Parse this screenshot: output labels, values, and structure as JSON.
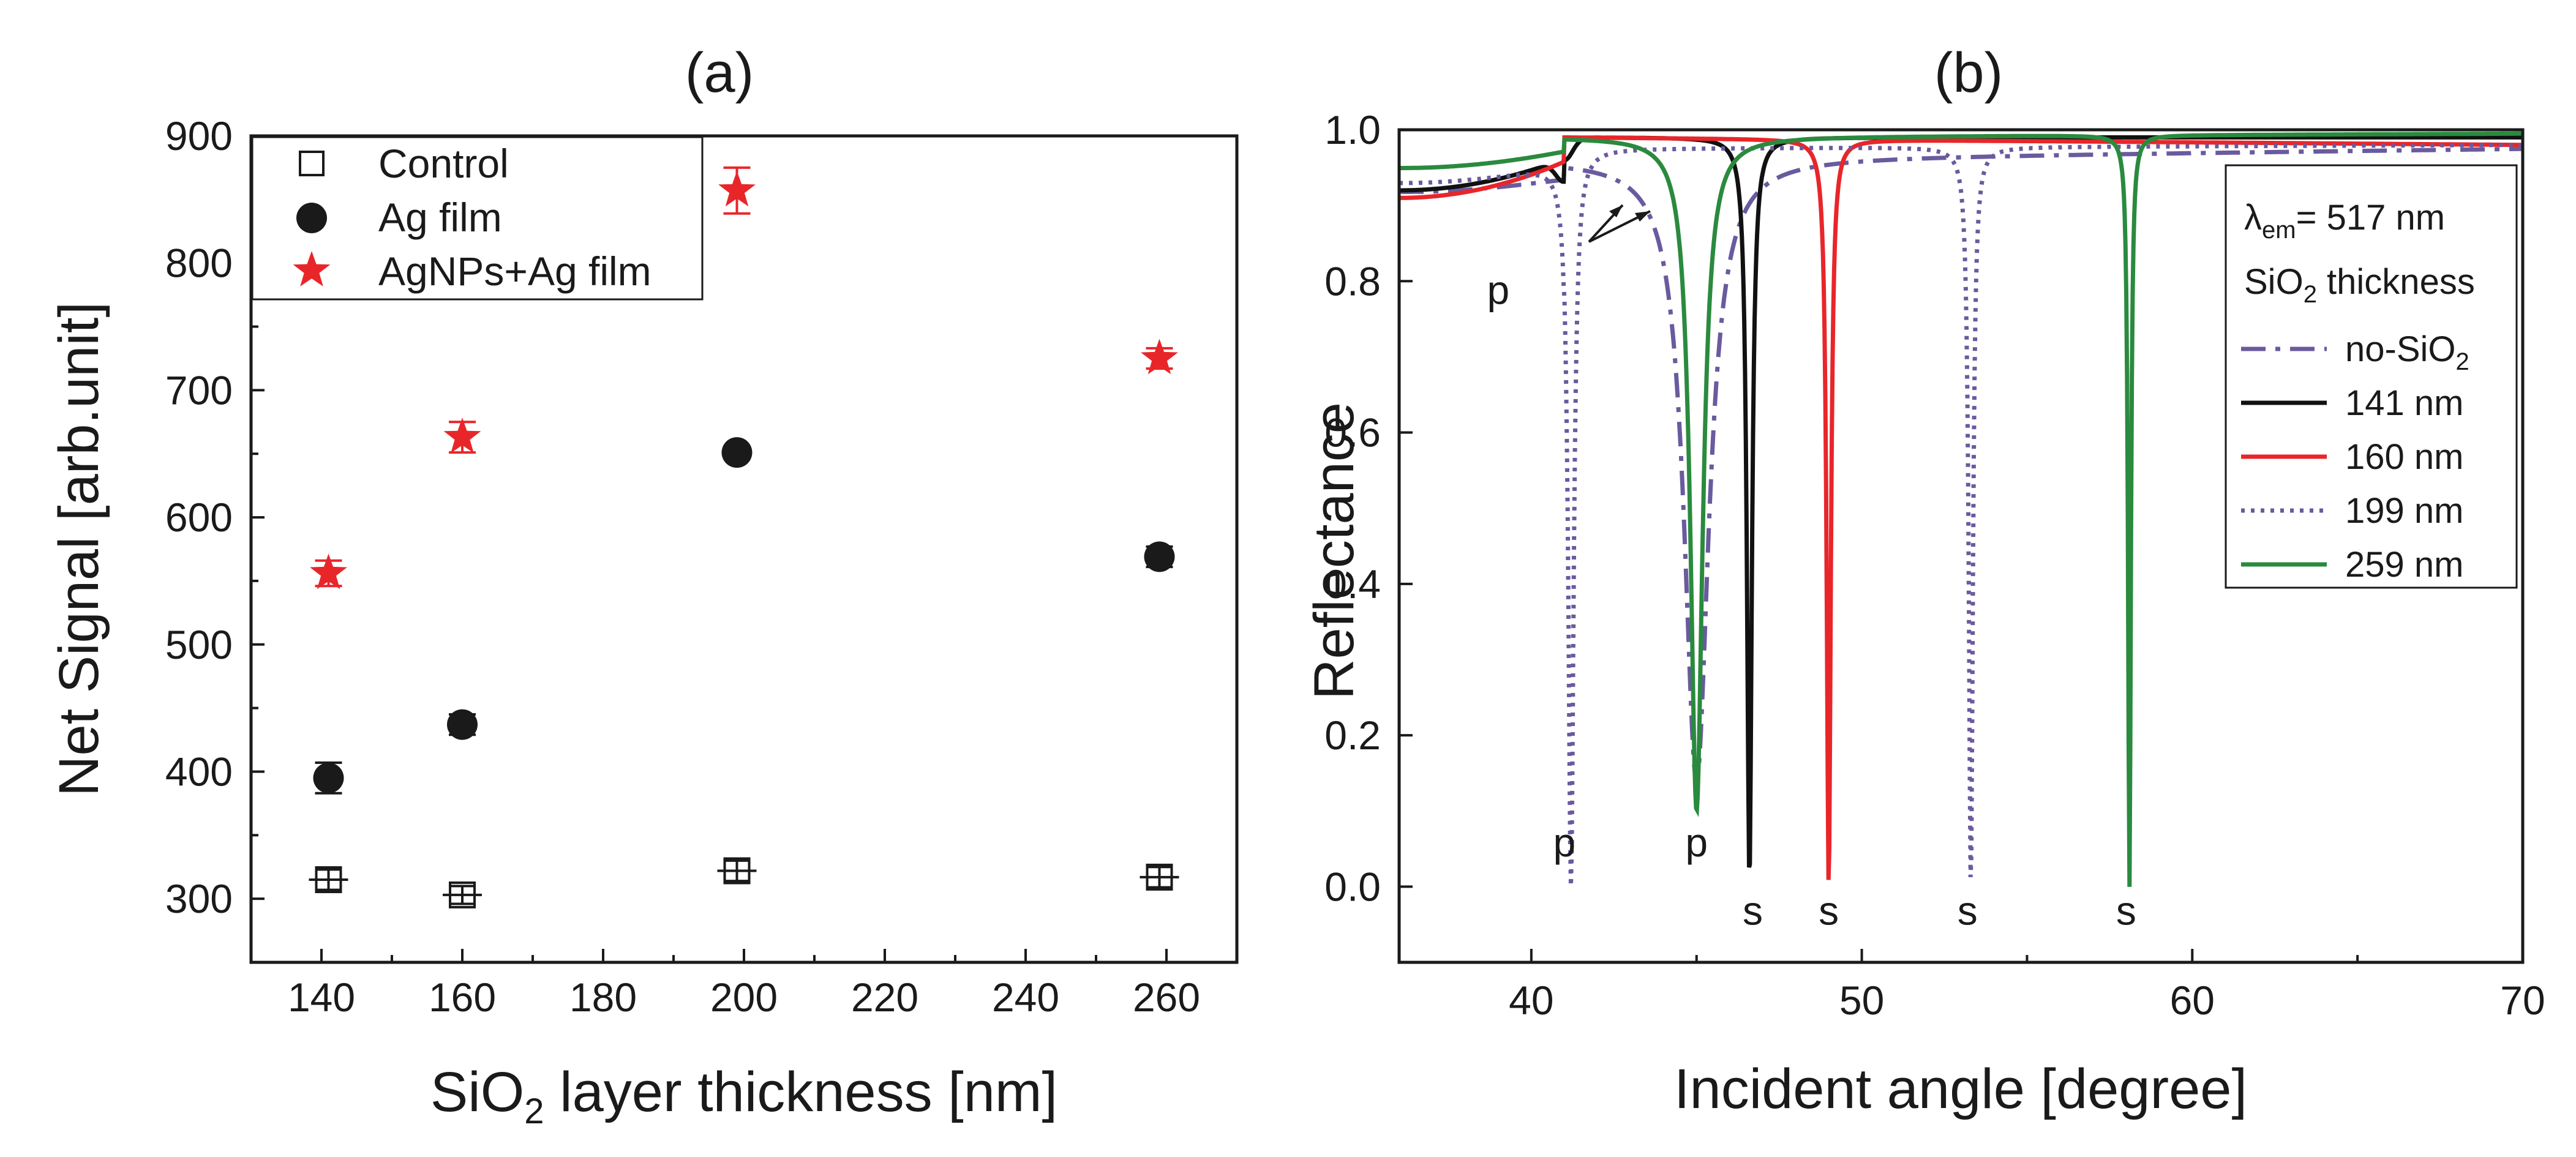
{
  "chart_data": [
    {
      "type": "scatter",
      "panel": "a",
      "title": "(a)",
      "xlabel": "SiO2 layer thickness [nm]",
      "ylabel": "Net Signal [arb.unit]",
      "xlim": [
        130,
        270
      ],
      "ylim": [
        250,
        900
      ],
      "xticks": [
        140,
        160,
        180,
        200,
        220,
        240,
        260
      ],
      "yticks": [
        300,
        400,
        500,
        600,
        700,
        800,
        900
      ],
      "legend_position": "top-left",
      "series": [
        {
          "name": "Control",
          "marker": "crossed-square",
          "color": "#1a1a1a",
          "x": [
            141,
            160,
            199,
            259
          ],
          "y": [
            315,
            303,
            322,
            317
          ],
          "err": [
            8,
            7,
            8,
            8
          ]
        },
        {
          "name": "Ag film",
          "marker": "circle",
          "color": "#1a1a1a",
          "x": [
            141,
            160,
            199,
            259
          ],
          "y": [
            395,
            437,
            651,
            569
          ],
          "err": [
            12,
            8,
            5,
            8
          ]
        },
        {
          "name": "AgNPs+Ag film",
          "marker": "star",
          "color": "#e8262a",
          "x": [
            141,
            160,
            199,
            259
          ],
          "y": [
            556,
            663,
            857,
            725
          ],
          "err": [
            10,
            12,
            18,
            8
          ]
        }
      ]
    },
    {
      "type": "line",
      "panel": "b",
      "title": "(b)",
      "xlabel": "Incident angle [degree]",
      "ylabel": "Reflectance",
      "xlim": [
        36,
        70
      ],
      "ylim": [
        -0.1,
        1.0
      ],
      "xticks": [
        40,
        50,
        60,
        70
      ],
      "yticks": [
        "0.0",
        "0.2",
        "0.4",
        "0.6",
        "0.8",
        "1.0"
      ],
      "legend_position": "right",
      "legend_header": {
        "lambda_symbol": "λ",
        "lambda_sub": "em",
        "lambda_value": "= 517 nm",
        "sio2": "SiO",
        "sio2_sub": "2",
        "thickness": " thickness"
      },
      "series": [
        {
          "name_main": "no-SiO",
          "name_sub": "2",
          "color": "#6a5a9e",
          "style": "dashdot",
          "baseline": 0.92,
          "plateau": 0.96,
          "slope_end": 0.975,
          "dips": [
            {
              "p": 45.0,
              "depth": 0.14,
              "width": 0.9
            }
          ]
        },
        {
          "name_main": "141 nm",
          "name_sub": "",
          "color": "#111111",
          "style": "solid",
          "baseline": 0.92,
          "plateau": 0.99,
          "slope_end": 0.99,
          "dips": [
            {
              "p": 41.0,
              "depth": 0.9,
              "width": 0.05,
              "small": true
            },
            {
              "p": 46.6,
              "depth": 0.01,
              "width": 0.18
            }
          ]
        },
        {
          "name_main": "160 nm",
          "name_sub": "",
          "color": "#e8262a",
          "style": "solid",
          "baseline": 0.91,
          "plateau": 0.99,
          "slope_end": 0.98,
          "dips": [
            {
              "p": 49.0,
              "depth": 0.0,
              "width": 0.15
            }
          ]
        },
        {
          "name_main": "199 nm",
          "name_sub": "",
          "color": "#6a5a9e",
          "style": "dotted",
          "baseline": 0.93,
          "plateau": 0.975,
          "slope_end": 0.98,
          "dips": [
            {
              "p": 41.2,
              "depth": 0.0,
              "width": 0.2
            },
            {
              "p": 53.3,
              "depth": 0.0,
              "width": 0.15
            }
          ]
        },
        {
          "name_main": "259 nm",
          "name_sub": "",
          "color": "#2a8a3e",
          "style": "solid",
          "baseline": 0.95,
          "plateau": 0.99,
          "slope_end": 0.995,
          "dips": [
            {
              "p": 45.0,
              "depth": 0.1,
              "width": 0.45
            },
            {
              "p": 58.1,
              "depth": 0.0,
              "width": 0.1
            }
          ]
        }
      ],
      "annotations": [
        {
          "text": "p",
          "x": 39.0,
          "y": 0.79
        },
        {
          "text": "p",
          "x": 41.0,
          "y": 0.06
        },
        {
          "text": "p",
          "x": 45.0,
          "y": 0.06
        },
        {
          "text": "s",
          "x": 46.7,
          "y": -0.03
        },
        {
          "text": "s",
          "x": 49.0,
          "y": -0.03
        },
        {
          "text": "s",
          "x": 53.2,
          "y": -0.03
        },
        {
          "text": "s",
          "x": 58.0,
          "y": -0.03
        }
      ]
    }
  ]
}
